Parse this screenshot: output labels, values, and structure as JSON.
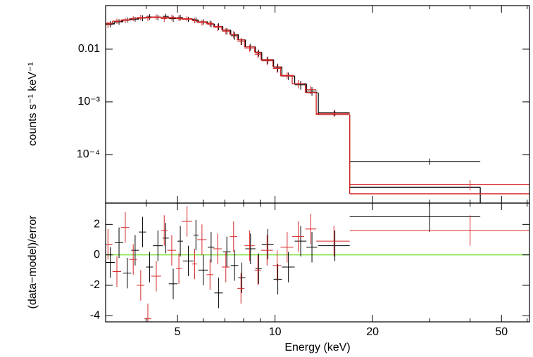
{
  "chart_data": [
    {
      "type": "errorbar",
      "ylabel": "counts s⁻¹ keV⁻¹",
      "yscale": "log",
      "ylim": [
        1.2e-05,
        0.067
      ],
      "yticks": [
        0.01,
        {
          "value": 0.001,
          "label": "10⁻³"
        },
        {
          "value": 0.0001,
          "label": "10⁻⁴"
        }
      ],
      "series": [
        {
          "color": "#000000",
          "x": [
            3.1,
            3.3,
            3.5,
            3.7,
            3.9,
            4.1,
            4.35,
            4.6,
            4.85,
            5.1,
            5.4,
            5.7,
            6.0,
            6.35,
            6.7,
            7.1,
            7.5,
            7.9,
            8.4,
            8.9,
            9.5,
            10.2,
            11.0,
            12.0,
            13.0,
            15.3,
            30
          ],
          "xerr": [
            0.1,
            0.1,
            0.1,
            0.1,
            0.1,
            0.1,
            0.15,
            0.1,
            0.15,
            0.1,
            0.2,
            0.1,
            0.2,
            0.15,
            0.2,
            0.2,
            0.2,
            0.2,
            0.3,
            0.2,
            0.4,
            0.3,
            0.5,
            0.5,
            0.5,
            1.7,
            13
          ],
          "values": [
            0.03,
            0.033,
            0.036,
            0.037,
            0.039,
            0.041,
            0.04,
            0.042,
            0.038,
            0.04,
            0.037,
            0.036,
            0.033,
            0.03,
            0.027,
            0.022,
            0.018,
            0.014,
            0.011,
            0.0085,
            0.0062,
            0.0045,
            0.0031,
            0.0021,
            0.0016,
            0.00062,
            7.4e-05
          ],
          "yerr": [
            0.004,
            0.004,
            0.004,
            0.004,
            0.005,
            0.005,
            0.005,
            0.005,
            0.005,
            0.005,
            0.004,
            0.004,
            0.004,
            0.004,
            0.004,
            0.003,
            0.003,
            0.002,
            0.0016,
            0.0013,
            0.001,
            0.0008,
            0.0005,
            0.0004,
            0.0003,
            8e-05,
            1e-05
          ],
          "model": [
            0.031,
            0.034,
            0.036,
            0.038,
            0.039,
            0.04,
            0.04,
            0.04,
            0.039,
            0.038,
            0.037,
            0.035,
            0.033,
            0.03,
            0.027,
            0.023,
            0.019,
            0.015,
            0.011,
            0.0087,
            0.0063,
            0.0046,
            0.0031,
            0.0022,
            0.0015,
            0.00057,
            2.4e-05
          ]
        },
        {
          "color": "#d62728",
          "x": [
            3.05,
            3.25,
            3.45,
            3.65,
            3.85,
            4.05,
            4.3,
            4.55,
            4.8,
            5.05,
            5.35,
            5.65,
            5.95,
            6.3,
            6.65,
            7.05,
            7.45,
            7.85,
            8.35,
            8.85,
            9.45,
            10.15,
            10.9,
            11.8,
            12.9,
            15.2,
            40
          ],
          "xerr": [
            0.1,
            0.1,
            0.1,
            0.1,
            0.1,
            0.1,
            0.15,
            0.1,
            0.15,
            0.1,
            0.2,
            0.1,
            0.2,
            0.15,
            0.2,
            0.2,
            0.2,
            0.2,
            0.3,
            0.2,
            0.4,
            0.3,
            0.5,
            0.5,
            0.5,
            1.8,
            23
          ],
          "values": [
            0.029,
            0.034,
            0.035,
            0.038,
            0.04,
            0.039,
            0.041,
            0.038,
            0.04,
            0.039,
            0.038,
            0.035,
            0.032,
            0.031,
            0.026,
            0.022,
            0.019,
            0.014,
            0.0105,
            0.008,
            0.006,
            0.0043,
            0.0032,
            0.0022,
            0.0017,
            0.0006,
            2.7e-05
          ],
          "yerr": [
            0.004,
            0.004,
            0.004,
            0.004,
            0.005,
            0.005,
            0.005,
            0.005,
            0.005,
            0.005,
            0.004,
            0.004,
            0.004,
            0.004,
            0.004,
            0.003,
            0.003,
            0.002,
            0.0016,
            0.0013,
            0.001,
            0.0008,
            0.0005,
            0.0004,
            0.0003,
            8e-05,
            6e-06
          ],
          "model": [
            0.031,
            0.034,
            0.036,
            0.038,
            0.039,
            0.04,
            0.04,
            0.04,
            0.039,
            0.038,
            0.037,
            0.035,
            0.033,
            0.03,
            0.027,
            0.023,
            0.019,
            0.015,
            0.011,
            0.0087,
            0.0063,
            0.0046,
            0.0031,
            0.0022,
            0.0015,
            0.00057,
            1.8e-05
          ]
        }
      ]
    },
    {
      "type": "residuals",
      "ylabel": "(data−model)/error",
      "xlabel": "Energy (keV)",
      "xscale": "log",
      "xlim": [
        3,
        61
      ],
      "xticks": [
        5,
        10,
        20,
        50
      ],
      "xticks_minor": [
        3,
        4,
        6,
        7,
        8,
        9,
        30,
        40,
        60
      ],
      "ylim": [
        -4.4,
        3.4
      ],
      "yticks": [
        2,
        0,
        -2,
        -4
      ],
      "hline": 0,
      "hline_color": "#7fe040",
      "error": 1,
      "series": [
        {
          "color": "#000000",
          "values": [
            -0.5,
            0.8,
            -1.2,
            0.3,
            1.5,
            -0.8,
            0.6,
            1.1,
            -1.9,
            0.9,
            -0.4,
            1.3,
            -1.0,
            0.5,
            -2.5,
            0.2,
            -0.7,
            -1.5,
            0.4,
            -0.9,
            0.7,
            -1.6,
            -0.8,
            0.9,
            0.5,
            0.6,
            2.5
          ]
        },
        {
          "color": "#d62728",
          "values": [
            0.7,
            -1.1,
            1.8,
            -0.3,
            -2.0,
            -4.2,
            -1.4,
            1.6,
            0.3,
            -0.9,
            2.2,
            -0.6,
            1.0,
            -1.3,
            0.4,
            -0.8,
            1.2,
            -2.2,
            0.6,
            -1.0,
            0.3,
            -0.7,
            0.5,
            1.2,
            1.7,
            0.9,
            1.6
          ]
        }
      ]
    }
  ]
}
